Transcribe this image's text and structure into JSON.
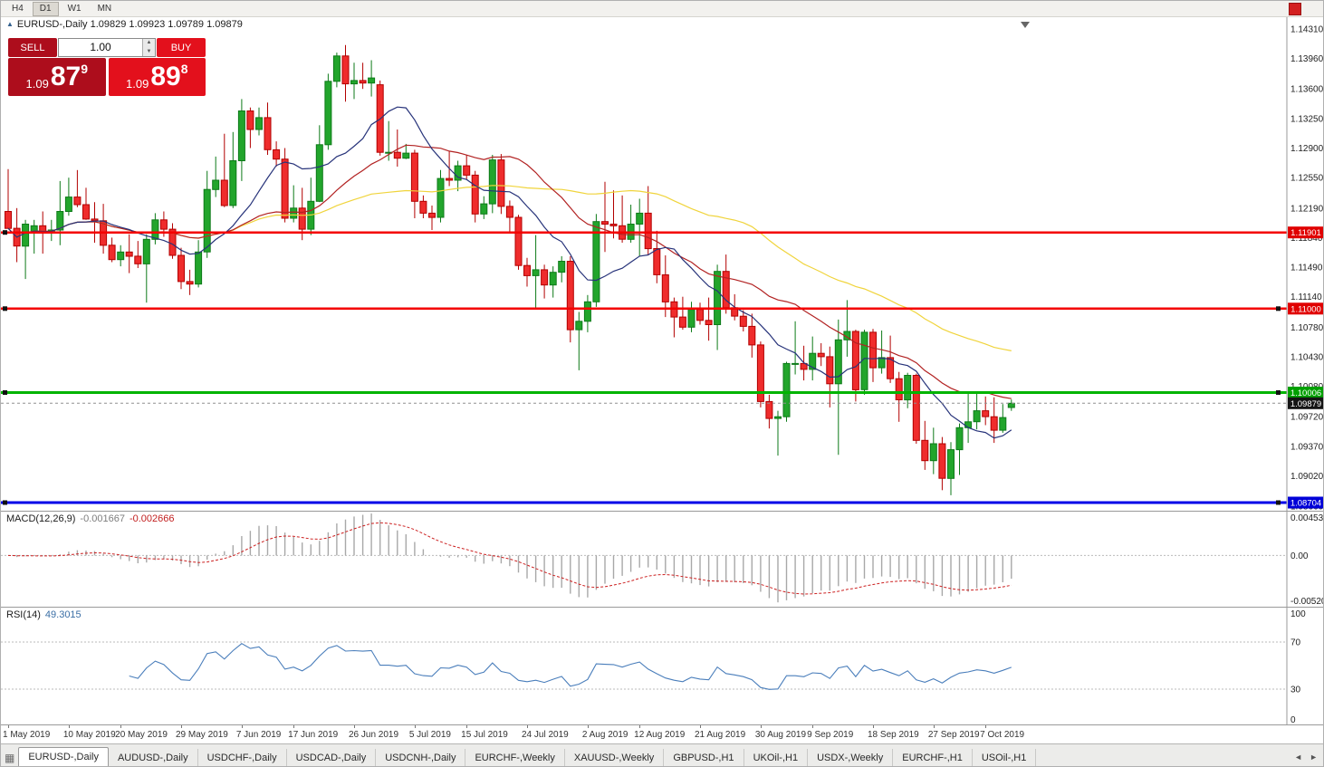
{
  "colors": {
    "sell": "#ad0d1c",
    "buy": "#e3101c",
    "candle_up": "#22a52c",
    "candle_up_border": "#0d7a18",
    "candle_down": "#ef2c2c",
    "candle_down_border": "#b20000",
    "ma_fast": "#27337a",
    "ma_mid": "#b22222",
    "ma_slow": "#f0d43c",
    "macd_hist": "#a8a8a8",
    "macd_signal": "#cc2020",
    "rsi_line": "#4a7ebb",
    "current_tag": "#141414"
  },
  "toolbar": {
    "timeframes": [
      {
        "label": "H4",
        "active": false
      },
      {
        "label": "D1",
        "active": true
      },
      {
        "label": "W1",
        "active": false
      },
      {
        "label": "MN",
        "active": false
      }
    ]
  },
  "chart": {
    "symbol_period": "EURUSD-,Daily",
    "ohlc": "1.09829 1.09923 1.09789 1.09879"
  },
  "trade_panel": {
    "sell_label": "SELL",
    "buy_label": "BUY",
    "volume": "1.00",
    "spin_up": "▲",
    "spin_down": "▼",
    "sell_price": {
      "prefix": "1.09",
      "big": "87",
      "sup": "9"
    },
    "buy_price": {
      "prefix": "1.09",
      "big": "89",
      "sup": "8"
    }
  },
  "indicators": {
    "macd": {
      "name": "MACD(12,26,9)",
      "value_main": "-0.001667",
      "value_signal": "-0.002666",
      "axis": [
        "0.004536",
        "0.00",
        "-0.005205"
      ]
    },
    "rsi": {
      "name": "RSI(14)",
      "value": "49.3015",
      "axis": [
        "100",
        "70",
        "30",
        "0"
      ],
      "guides": [
        70,
        30
      ]
    }
  },
  "y_axis": [
    "1.14310",
    "1.13960",
    "1.13600",
    "1.13250",
    "1.12900",
    "1.12550",
    "1.12190",
    "1.11840",
    "1.11490",
    "1.11140",
    "1.10780",
    "1.10430",
    "1.10080",
    "1.09720",
    "1.09370",
    "1.09020",
    "1.08660"
  ],
  "x_axis": [
    {
      "label": "1 May 2019",
      "i": 0
    },
    {
      "label": "10 May 2019",
      "i": 7
    },
    {
      "label": "20 May 2019",
      "i": 13
    },
    {
      "label": "29 May 2019",
      "i": 20
    },
    {
      "label": "7 Jun 2019",
      "i": 27
    },
    {
      "label": "17 Jun 2019",
      "i": 33
    },
    {
      "label": "26 Jun 2019",
      "i": 40
    },
    {
      "label": "5 Jul 2019",
      "i": 47
    },
    {
      "label": "15 Jul 2019",
      "i": 53
    },
    {
      "label": "24 Jul 2019",
      "i": 60
    },
    {
      "label": "2 Aug 2019",
      "i": 67
    },
    {
      "label": "12 Aug 2019",
      "i": 73
    },
    {
      "label": "21 Aug 2019",
      "i": 80
    },
    {
      "label": "30 Aug 2019",
      "i": 87
    },
    {
      "label": "9 Sep 2019",
      "i": 93
    },
    {
      "label": "18 Sep 2019",
      "i": 100
    },
    {
      "label": "27 Sep 2019",
      "i": 107
    },
    {
      "label": "7 Oct 2019",
      "i": 113
    }
  ],
  "levels": [
    {
      "price": 1.11901,
      "label": "1.11901",
      "color": "#f40000",
      "width": 2.5,
      "tag": "#e00000",
      "handle_right": false
    },
    {
      "price": 1.11,
      "label": "1.11000",
      "color": "#f40000",
      "width": 2.5,
      "tag": "#e00000",
      "handle_right": true
    },
    {
      "price": 1.10006,
      "label": "1.10006",
      "color": "#00b400",
      "width": 3,
      "tag": "#00a000",
      "handle_right": true
    },
    {
      "price": 1.08704,
      "label": "1.08704",
      "color": "#0000e8",
      "width": 3,
      "tag": "#0000d8",
      "handle_right": true
    }
  ],
  "current_price": {
    "price": 1.09879,
    "label": "1.09879"
  },
  "tabs": [
    {
      "label": "EURUSD-,Daily",
      "active": true
    },
    {
      "label": "AUDUSD-,Daily",
      "active": false
    },
    {
      "label": "USDCHF-,Daily",
      "active": false
    },
    {
      "label": "USDCAD-,Daily",
      "active": false
    },
    {
      "label": "USDCNH-,Daily",
      "active": false
    },
    {
      "label": "EURCHF-,Weekly",
      "active": false
    },
    {
      "label": "XAUUSD-,Weekly",
      "active": false
    },
    {
      "label": "GBPUSD-,H1",
      "active": false
    },
    {
      "label": "UKOil-,H1",
      "active": false
    },
    {
      "label": "USDX-,Weekly",
      "active": false
    },
    {
      "label": "EURCHF-,H1",
      "active": false
    },
    {
      "label": "USOil-,H1",
      "active": false
    }
  ],
  "tab_controls": {
    "left": "◄",
    "right": "►"
  },
  "chart_data": {
    "type": "candlestick",
    "symbol_period": "EURUSD-,Daily",
    "last_ohlc": {
      "open": 1.09829,
      "high": 1.09923,
      "low": 1.09789,
      "close": 1.09879
    },
    "ylim": [
      1.08607,
      1.1446
    ],
    "overlays": {
      "sma_fast": 10,
      "sma_mid": 24,
      "sma_slow": 50
    },
    "macd_params": [
      12,
      26,
      9
    ],
    "macd_range": [
      -0.005205,
      0.004536
    ],
    "rsi_period": 14,
    "rsi_range": [
      0,
      100
    ],
    "candles": [
      [
        1.1215,
        1.1265,
        1.1205,
        1.1195
      ],
      [
        1.1195,
        1.1219,
        1.1155,
        1.1174
      ],
      [
        1.1174,
        1.1205,
        1.1135,
        1.12
      ],
      [
        1.119,
        1.1205,
        1.1165,
        1.1198
      ],
      [
        1.1198,
        1.1215,
        1.1165,
        1.119
      ],
      [
        1.119,
        1.1205,
        1.118,
        1.1193
      ],
      [
        1.1193,
        1.1251,
        1.1175,
        1.1215
      ],
      [
        1.1215,
        1.1255,
        1.121,
        1.1232
      ],
      [
        1.1232,
        1.1264,
        1.122,
        1.1223
      ],
      [
        1.1223,
        1.1243,
        1.1205,
        1.1206
      ],
      [
        1.1206,
        1.1226,
        1.1178,
        1.1204
      ],
      [
        1.1204,
        1.1224,
        1.1165,
        1.1175
      ],
      [
        1.1175,
        1.1184,
        1.1155,
        1.1158
      ],
      [
        1.1158,
        1.1175,
        1.115,
        1.1167
      ],
      [
        1.1167,
        1.1188,
        1.1142,
        1.1162
      ],
      [
        1.1162,
        1.118,
        1.1148,
        1.1153
      ],
      [
        1.1153,
        1.1188,
        1.1107,
        1.1182
      ],
      [
        1.1182,
        1.1213,
        1.1176,
        1.1205
      ],
      [
        1.1205,
        1.1215,
        1.1185,
        1.1194
      ],
      [
        1.1194,
        1.1201,
        1.1159,
        1.1163
      ],
      [
        1.1163,
        1.1172,
        1.1123,
        1.1132
      ],
      [
        1.1132,
        1.1146,
        1.1116,
        1.1129
      ],
      [
        1.1129,
        1.1181,
        1.1125,
        1.1167
      ],
      [
        1.1167,
        1.1263,
        1.116,
        1.1241
      ],
      [
        1.1241,
        1.128,
        1.1232,
        1.1252
      ],
      [
        1.1252,
        1.1307,
        1.122,
        1.1222
      ],
      [
        1.1222,
        1.1309,
        1.1219,
        1.1275
      ],
      [
        1.1275,
        1.1348,
        1.1251,
        1.1334
      ],
      [
        1.1334,
        1.1338,
        1.129,
        1.1312
      ],
      [
        1.1312,
        1.1338,
        1.1305,
        1.1326
      ],
      [
        1.1326,
        1.1344,
        1.1282,
        1.1288
      ],
      [
        1.1288,
        1.1298,
        1.1268,
        1.1277
      ],
      [
        1.1277,
        1.129,
        1.1202,
        1.1207
      ],
      [
        1.1207,
        1.1246,
        1.1202,
        1.1219
      ],
      [
        1.1219,
        1.1243,
        1.1181,
        1.1194
      ],
      [
        1.1194,
        1.1255,
        1.1187,
        1.1227
      ],
      [
        1.1227,
        1.1317,
        1.1226,
        1.1294
      ],
      [
        1.1294,
        1.1378,
        1.1288,
        1.1369
      ],
      [
        1.1369,
        1.1403,
        1.1362,
        1.1399
      ],
      [
        1.1399,
        1.1412,
        1.1345,
        1.1366
      ],
      [
        1.1366,
        1.1391,
        1.1348,
        1.137
      ],
      [
        1.137,
        1.1391,
        1.136,
        1.1367
      ],
      [
        1.1367,
        1.1394,
        1.1351,
        1.1373
      ],
      [
        1.1365,
        1.137,
        1.1281,
        1.1285
      ],
      [
        1.1285,
        1.1322,
        1.1275,
        1.1285
      ],
      [
        1.1285,
        1.1312,
        1.1268,
        1.1278
      ],
      [
        1.1278,
        1.1295,
        1.1277,
        1.1284
      ],
      [
        1.1284,
        1.1288,
        1.1207,
        1.1227
      ],
      [
        1.1227,
        1.1234,
        1.1207,
        1.1213
      ],
      [
        1.1213,
        1.1222,
        1.1193,
        1.1208
      ],
      [
        1.1208,
        1.1264,
        1.1202,
        1.1254
      ],
      [
        1.1254,
        1.1286,
        1.1245,
        1.1252
      ],
      [
        1.1252,
        1.1275,
        1.1239,
        1.1269
      ],
      [
        1.1269,
        1.1282,
        1.1253,
        1.1258
      ],
      [
        1.1258,
        1.1263,
        1.1202,
        1.1212
      ],
      [
        1.1212,
        1.1233,
        1.1206,
        1.1224
      ],
      [
        1.1224,
        1.1282,
        1.1213,
        1.1276
      ],
      [
        1.1276,
        1.1283,
        1.1212,
        1.1221
      ],
      [
        1.1221,
        1.1228,
        1.119,
        1.1208
      ],
      [
        1.1208,
        1.1211,
        1.1146,
        1.1151
      ],
      [
        1.1151,
        1.116,
        1.1126,
        1.1139
      ],
      [
        1.1139,
        1.1187,
        1.1101,
        1.1146
      ],
      [
        1.1146,
        1.1152,
        1.1112,
        1.1128
      ],
      [
        1.1128,
        1.115,
        1.1113,
        1.1143
      ],
      [
        1.1143,
        1.1162,
        1.1131,
        1.1156
      ],
      [
        1.1156,
        1.1162,
        1.106,
        1.1075
      ],
      [
        1.1075,
        1.1096,
        1.1027,
        1.1085
      ],
      [
        1.1085,
        1.1116,
        1.1072,
        1.1108
      ],
      [
        1.1108,
        1.1212,
        1.1102,
        1.1203
      ],
      [
        1.1203,
        1.125,
        1.1167,
        1.12
      ],
      [
        1.12,
        1.124,
        1.1183,
        1.1198
      ],
      [
        1.1198,
        1.1234,
        1.1178,
        1.1182
      ],
      [
        1.1182,
        1.1223,
        1.1178,
        1.12
      ],
      [
        1.12,
        1.123,
        1.1162,
        1.1213
      ],
      [
        1.1213,
        1.1245,
        1.1163,
        1.1171
      ],
      [
        1.1171,
        1.1192,
        1.113,
        1.114
      ],
      [
        1.114,
        1.1163,
        1.109,
        1.1108
      ],
      [
        1.1108,
        1.1113,
        1.1066,
        1.109
      ],
      [
        1.109,
        1.1114,
        1.1075,
        1.1078
      ],
      [
        1.1078,
        1.1108,
        1.1072,
        1.1099
      ],
      [
        1.1099,
        1.1107,
        1.1081,
        1.1086
      ],
      [
        1.1086,
        1.1113,
        1.1062,
        1.1081
      ],
      [
        1.1081,
        1.1152,
        1.1051,
        1.1144
      ],
      [
        1.1144,
        1.1164,
        1.1094,
        1.1101
      ],
      [
        1.1101,
        1.1117,
        1.1086,
        1.1091
      ],
      [
        1.1091,
        1.1098,
        1.1073,
        1.1079
      ],
      [
        1.1079,
        1.1094,
        1.1042,
        1.1057
      ],
      [
        1.1057,
        1.1061,
        1.0983,
        1.099
      ],
      [
        1.099,
        1.0998,
        1.0958,
        1.097
      ],
      [
        1.097,
        1.0979,
        1.0926,
        1.0972
      ],
      [
        1.0972,
        1.1037,
        1.0966,
        1.1035
      ],
      [
        1.1035,
        1.1085,
        1.1022,
        1.1035
      ],
      [
        1.1035,
        1.1056,
        1.1015,
        1.1028
      ],
      [
        1.1028,
        1.1067,
        1.1015,
        1.1047
      ],
      [
        1.1047,
        1.1059,
        1.1032,
        1.1043
      ],
      [
        1.1043,
        1.1055,
        1.0983,
        1.1011
      ],
      [
        1.1011,
        1.1087,
        1.0927,
        1.1063
      ],
      [
        1.1063,
        1.111,
        1.1043,
        1.1073
      ],
      [
        1.1073,
        1.1075,
        1.099,
        1.1004
      ],
      [
        1.1004,
        1.1075,
        1.0998,
        1.1072
      ],
      [
        1.1072,
        1.1076,
        1.1013,
        1.103
      ],
      [
        1.103,
        1.1074,
        1.1023,
        1.1042
      ],
      [
        1.1042,
        1.1068,
        1.1012,
        1.1017
      ],
      [
        1.1017,
        1.1025,
        1.0966,
        1.0992
      ],
      [
        1.0992,
        1.1024,
        1.0982,
        1.1021
      ],
      [
        1.1021,
        1.1023,
        1.094,
        1.0944
      ],
      [
        1.0944,
        1.0967,
        1.0909,
        1.092
      ],
      [
        1.092,
        1.0959,
        1.0904,
        1.094
      ],
      [
        1.094,
        1.0948,
        1.0885,
        1.0899
      ],
      [
        1.0899,
        1.0942,
        1.0879,
        1.0933
      ],
      [
        1.0933,
        1.0964,
        1.0903,
        1.0959
      ],
      [
        1.0959,
        1.0999,
        1.0941,
        1.0966
      ],
      [
        1.0966,
        1.0999,
        1.0957,
        1.0979
      ],
      [
        1.0979,
        1.0996,
        1.0962,
        1.0972
      ],
      [
        1.0972,
        1.0995,
        1.0941,
        1.0956
      ],
      [
        1.0956,
        1.0987,
        1.0953,
        1.0971
      ],
      [
        1.09829,
        1.09923,
        1.09789,
        1.09879
      ]
    ]
  }
}
